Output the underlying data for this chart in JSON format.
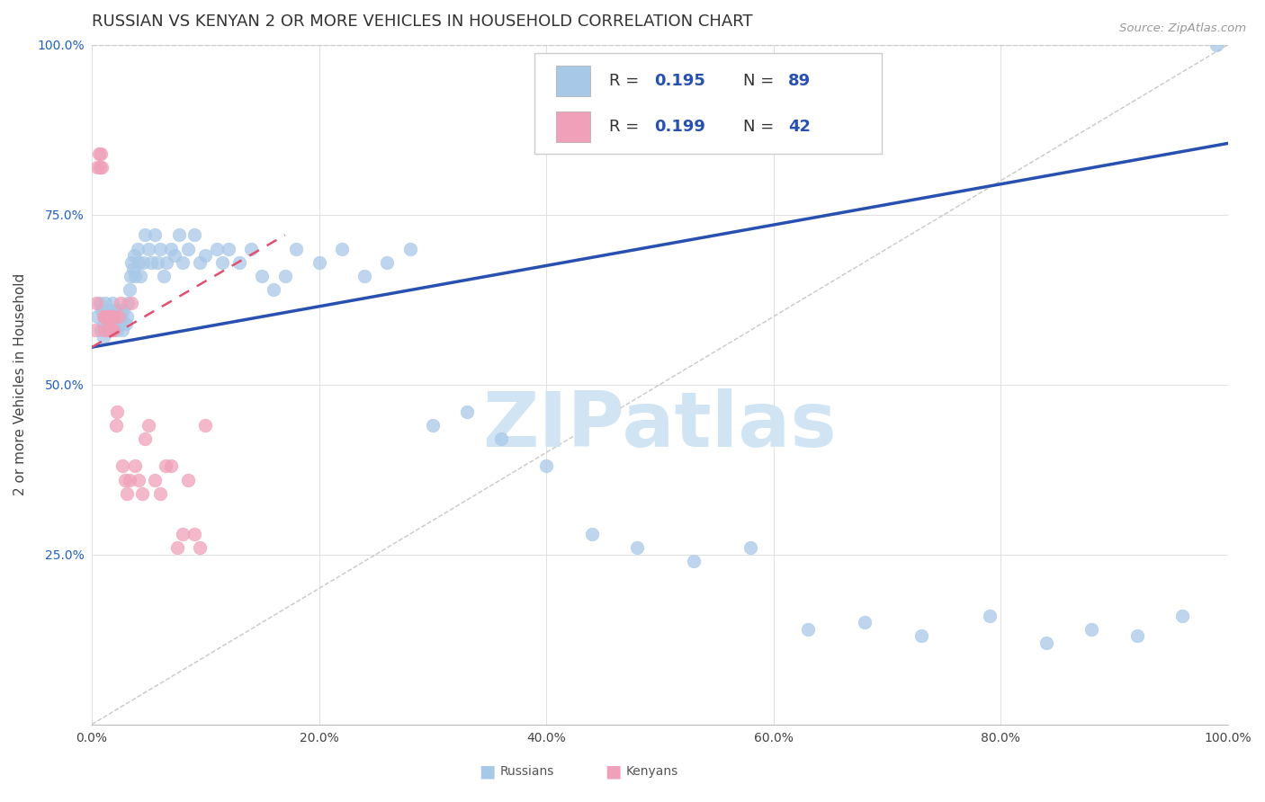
{
  "title": "RUSSIAN VS KENYAN 2 OR MORE VEHICLES IN HOUSEHOLD CORRELATION CHART",
  "source": "Source: ZipAtlas.com",
  "ylabel": "2 or more Vehicles in Household",
  "watermark": "ZIPatlas",
  "russian_R": 0.195,
  "russian_N": 89,
  "kenyan_R": 0.199,
  "kenyan_N": 42,
  "russian_color": "#a8c8e8",
  "kenyan_color": "#f0a0b8",
  "regression_line_russian_color": "#2850b0",
  "regression_line_kenyan_color": "#e05070",
  "dashed_line_color": "#c8c8c8",
  "xlim": [
    0.0,
    1.0
  ],
  "ylim": [
    0.0,
    1.0
  ],
  "russian_x": [
    0.005,
    0.007,
    0.008,
    0.009,
    0.01,
    0.01,
    0.011,
    0.012,
    0.012,
    0.013,
    0.014,
    0.015,
    0.015,
    0.016,
    0.017,
    0.018,
    0.018,
    0.019,
    0.02,
    0.02,
    0.021,
    0.022,
    0.023,
    0.024,
    0.025,
    0.025,
    0.026,
    0.027,
    0.028,
    0.03,
    0.031,
    0.032,
    0.033,
    0.034,
    0.035,
    0.036,
    0.037,
    0.038,
    0.04,
    0.041,
    0.043,
    0.045,
    0.047,
    0.05,
    0.052,
    0.055,
    0.058,
    0.06,
    0.063,
    0.066,
    0.07,
    0.073,
    0.077,
    0.08,
    0.085,
    0.09,
    0.095,
    0.1,
    0.11,
    0.115,
    0.12,
    0.13,
    0.14,
    0.15,
    0.16,
    0.17,
    0.18,
    0.2,
    0.22,
    0.24,
    0.26,
    0.28,
    0.3,
    0.33,
    0.36,
    0.4,
    0.44,
    0.48,
    0.53,
    0.58,
    0.63,
    0.68,
    0.73,
    0.79,
    0.84,
    0.88,
    0.92,
    0.96,
    0.99
  ],
  "russian_y": [
    0.6,
    0.62,
    0.58,
    0.61,
    0.59,
    0.57,
    0.6,
    0.58,
    0.62,
    0.61,
    0.59,
    0.6,
    0.58,
    0.61,
    0.59,
    0.6,
    0.62,
    0.58,
    0.6,
    0.61,
    0.59,
    0.58,
    0.6,
    0.61,
    0.59,
    0.61,
    0.6,
    0.58,
    0.61,
    0.59,
    0.6,
    0.62,
    0.64,
    0.66,
    0.68,
    0.67,
    0.69,
    0.66,
    0.7,
    0.68,
    0.66,
    0.68,
    0.72,
    0.7,
    0.68,
    0.72,
    0.68,
    0.7,
    0.66,
    0.68,
    0.7,
    0.69,
    0.72,
    0.68,
    0.7,
    0.72,
    0.68,
    0.69,
    0.7,
    0.68,
    0.7,
    0.68,
    0.7,
    0.66,
    0.64,
    0.66,
    0.7,
    0.68,
    0.7,
    0.66,
    0.68,
    0.7,
    0.44,
    0.46,
    0.42,
    0.38,
    0.28,
    0.26,
    0.24,
    0.26,
    0.14,
    0.15,
    0.13,
    0.16,
    0.12,
    0.14,
    0.13,
    0.16,
    1.0
  ],
  "kenyan_x": [
    0.003,
    0.004,
    0.005,
    0.006,
    0.007,
    0.008,
    0.009,
    0.01,
    0.011,
    0.012,
    0.013,
    0.014,
    0.015,
    0.016,
    0.017,
    0.018,
    0.019,
    0.02,
    0.021,
    0.022,
    0.024,
    0.025,
    0.027,
    0.029,
    0.031,
    0.033,
    0.035,
    0.038,
    0.041,
    0.044,
    0.047,
    0.05,
    0.055,
    0.06,
    0.065,
    0.07,
    0.075,
    0.08,
    0.085,
    0.09,
    0.095,
    0.1
  ],
  "kenyan_y": [
    0.58,
    0.62,
    0.82,
    0.84,
    0.82,
    0.84,
    0.82,
    0.6,
    0.58,
    0.6,
    0.6,
    0.58,
    0.6,
    0.58,
    0.58,
    0.6,
    0.58,
    0.6,
    0.44,
    0.46,
    0.6,
    0.62,
    0.38,
    0.36,
    0.34,
    0.36,
    0.62,
    0.38,
    0.36,
    0.34,
    0.42,
    0.44,
    0.36,
    0.34,
    0.38,
    0.38,
    0.26,
    0.28,
    0.36,
    0.28,
    0.26,
    0.44
  ],
  "russian_line_x": [
    0.0,
    1.0
  ],
  "russian_line_y": [
    0.555,
    0.855
  ],
  "kenyan_line_x": [
    0.0,
    0.17
  ],
  "kenyan_line_y": [
    0.555,
    0.72
  ],
  "background_color": "#ffffff",
  "grid_color": "#e0e0e0",
  "tick_label_color_x": "#444444",
  "tick_label_color_y": "#2060c0",
  "title_fontsize": 13,
  "axis_label_fontsize": 11,
  "legend_fontsize": 13,
  "watermark_color": "#d0e4f4",
  "watermark_fontsize": 62
}
